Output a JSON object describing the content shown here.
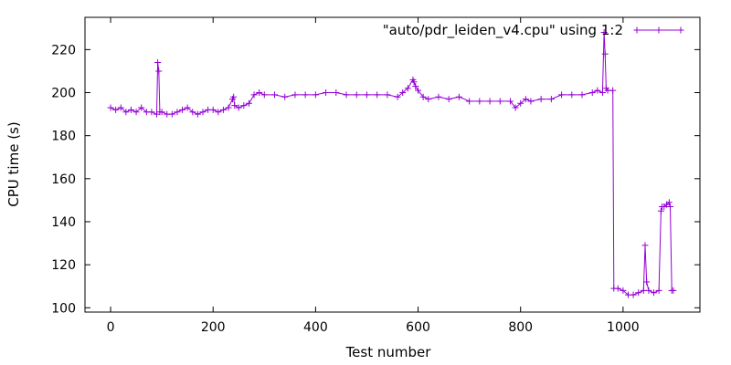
{
  "chart_data": {
    "type": "line",
    "xlabel": "Test number",
    "ylabel": "CPU time (s)",
    "xlim": [
      -50,
      1150
    ],
    "ylim": [
      98,
      235
    ],
    "xticks": [
      0,
      200,
      400,
      600,
      800,
      1000
    ],
    "yticks": [
      100,
      120,
      140,
      160,
      180,
      200,
      220
    ],
    "grid": false,
    "legend_position": "top-right",
    "series": [
      {
        "name": "\"auto/pdr_leiden_v4.cpu\" using 1:2",
        "color": "#9400d3",
        "marker": "plus",
        "x": [
          0,
          10,
          20,
          30,
          40,
          50,
          60,
          70,
          80,
          90,
          92,
          94,
          96,
          100,
          110,
          120,
          130,
          140,
          150,
          160,
          170,
          180,
          190,
          200,
          210,
          220,
          230,
          238,
          240,
          242,
          250,
          260,
          270,
          280,
          290,
          300,
          320,
          340,
          360,
          380,
          400,
          420,
          440,
          460,
          480,
          500,
          520,
          540,
          560,
          570,
          580,
          590,
          592,
          595,
          600,
          610,
          620,
          640,
          660,
          680,
          700,
          720,
          740,
          760,
          780,
          790,
          800,
          810,
          820,
          840,
          860,
          880,
          900,
          920,
          940,
          950,
          960,
          963,
          965,
          967,
          970,
          980,
          982,
          990,
          1000,
          1010,
          1020,
          1030,
          1040,
          1043,
          1046,
          1050,
          1060,
          1070,
          1074,
          1076,
          1080,
          1085,
          1090,
          1092,
          1095,
          1098
        ],
        "y": [
          193,
          192,
          193,
          191,
          192,
          191,
          193,
          191,
          191,
          190,
          214,
          210,
          191,
          191,
          190,
          190,
          191,
          192,
          193,
          191,
          190,
          191,
          192,
          192,
          191,
          192,
          193,
          197,
          198,
          194,
          193,
          194,
          195,
          199,
          200,
          199,
          199,
          198,
          199,
          199,
          199,
          200,
          200,
          199,
          199,
          199,
          199,
          199,
          198,
          200,
          202,
          206,
          205,
          203,
          201,
          198,
          197,
          198,
          197,
          198,
          196,
          196,
          196,
          196,
          196,
          193,
          195,
          197,
          196,
          197,
          197,
          199,
          199,
          199,
          200,
          201,
          200,
          228,
          218,
          202,
          201,
          201,
          109,
          109,
          108,
          106,
          106,
          107,
          108,
          129,
          112,
          108,
          107,
          108,
          145,
          147,
          147,
          148,
          149,
          147,
          108,
          108
        ]
      }
    ]
  }
}
